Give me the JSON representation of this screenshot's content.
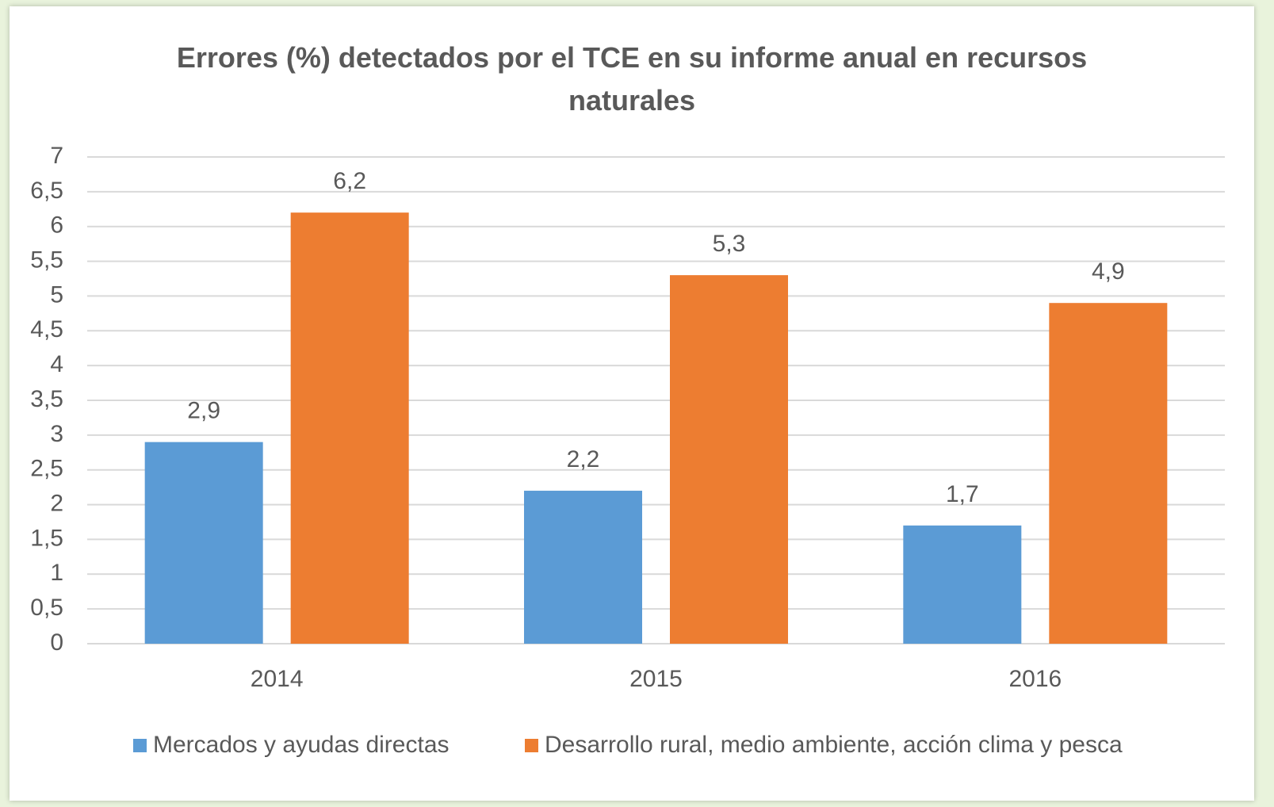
{
  "chart_data": {
    "type": "bar",
    "title": "Errores (%) detectados por el TCE en su informe anual en recursos naturales",
    "categories": [
      "2014",
      "2015",
      "2016"
    ],
    "series": [
      {
        "name": "Mercados y ayudas directas",
        "color": "#5b9bd5",
        "values": [
          2.9,
          2.2,
          1.7
        ],
        "value_labels": [
          "2,9",
          "2,2",
          "1,7"
        ]
      },
      {
        "name": "Desarrollo rural, medio ambiente, acción clima y pesca",
        "color": "#ed7d31",
        "values": [
          6.2,
          5.3,
          4.9
        ],
        "value_labels": [
          "6,2",
          "5,3",
          "4,9"
        ]
      }
    ],
    "ylim": [
      0,
      7
    ],
    "yticks": [
      0,
      {
        "value": 0.5,
        "label": "0,5"
      },
      1,
      {
        "value": 1.5,
        "label": "1,5"
      },
      2,
      {
        "value": 2.5,
        "label": "2,5"
      },
      3,
      {
        "value": 3.5,
        "label": "3,5"
      },
      4,
      {
        "value": 4.5,
        "label": "4,5"
      },
      5,
      {
        "value": 5.5,
        "label": "5,5"
      },
      6,
      {
        "value": 6.5,
        "label": "6,5"
      },
      7
    ],
    "grid": true,
    "legend": "bottom"
  }
}
